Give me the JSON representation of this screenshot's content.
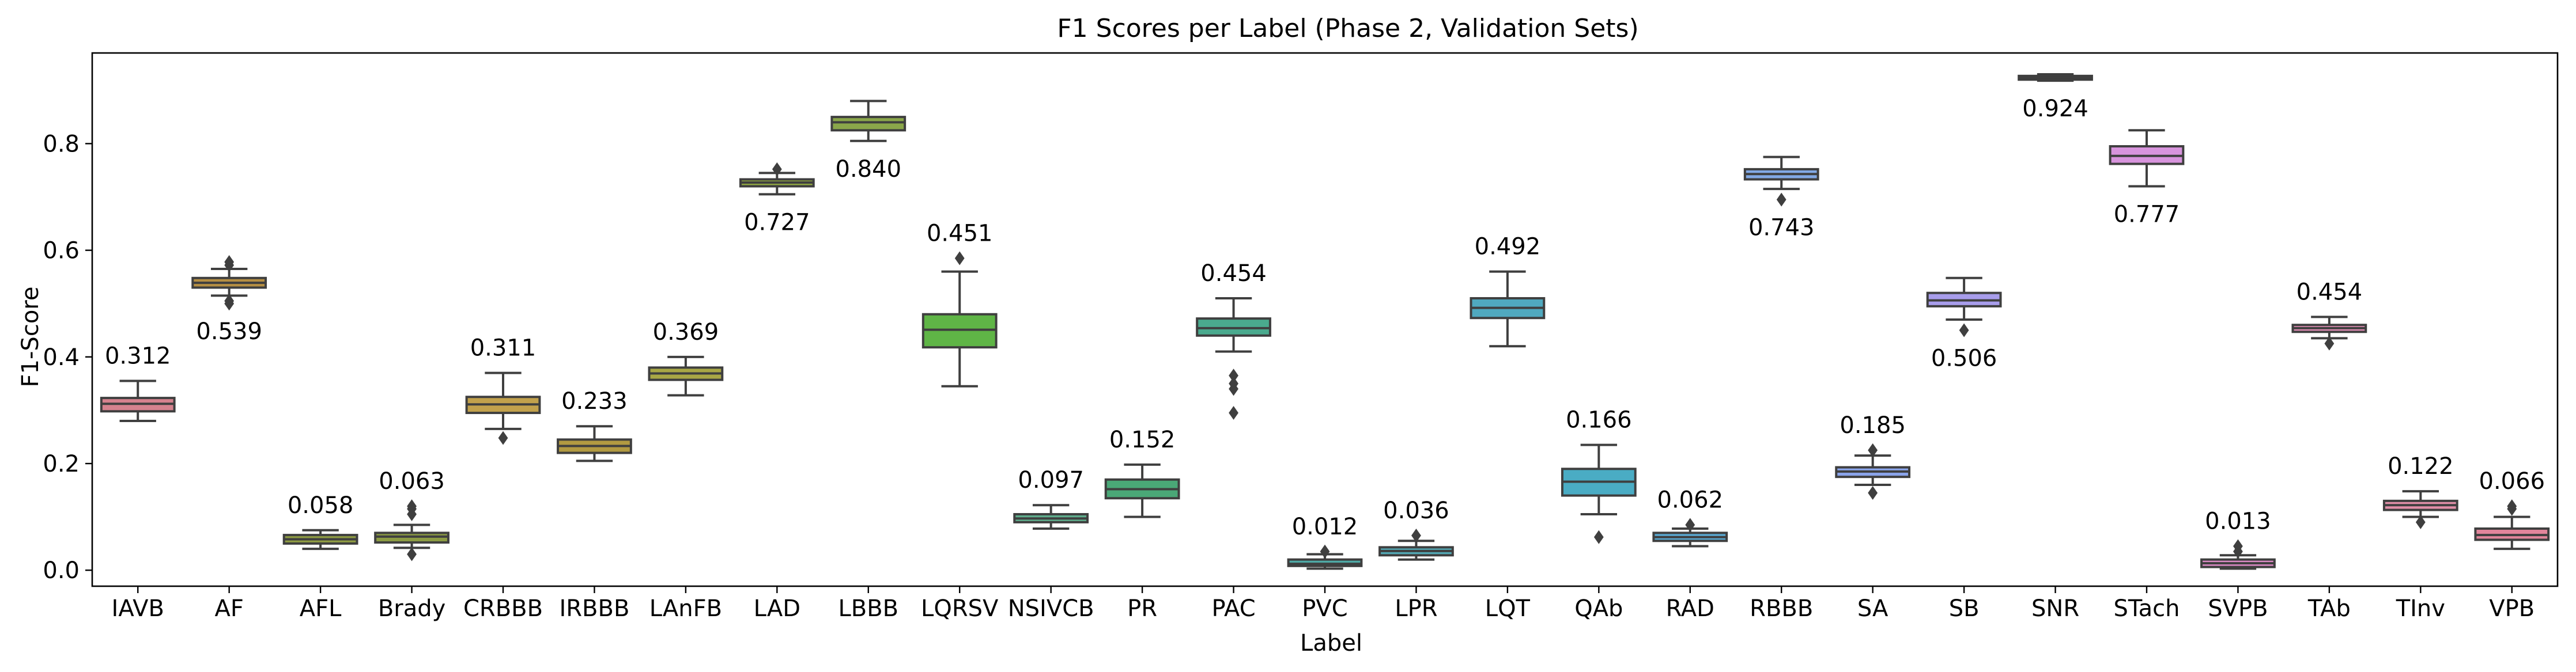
{
  "chart_data": {
    "type": "box",
    "title": "F1 Scores per Label (Phase 2, Validation Sets)",
    "xlabel": "Label",
    "ylabel": "F1-Score",
    "ylim": [
      -0.03,
      0.97
    ],
    "yticks": [
      0.0,
      0.2,
      0.4,
      0.6,
      0.8
    ],
    "ytick_labels": [
      "0.0",
      "0.2",
      "0.4",
      "0.6",
      "0.8"
    ],
    "grid": false,
    "categories": [
      "IAVB",
      "AF",
      "AFL",
      "Brady",
      "CRBBB",
      "IRBBB",
      "LAnFB",
      "LAD",
      "LBBB",
      "LQRSV",
      "NSIVCB",
      "PR",
      "PAC",
      "PVC",
      "LPR",
      "LQT",
      "QAb",
      "RAD",
      "RBBB",
      "SA",
      "SB",
      "SNR",
      "STach",
      "SVPB",
      "TAb",
      "TInv",
      "VPB"
    ],
    "colors": [
      "#d5828e",
      "#b68f43",
      "#8e9b43",
      "#8c9b43",
      "#c2a14c",
      "#b29a41",
      "#a9a745",
      "#8da441",
      "#8aa64a",
      "#5fb546",
      "#5fad8c",
      "#4aa877",
      "#4aaa8e",
      "#4fa9a5",
      "#53a8b4",
      "#50a9bf",
      "#4aacc4",
      "#5aaad4",
      "#82a9e5",
      "#8aa4ea",
      "#a89deb",
      "#b196e8",
      "#d894dd",
      "#dd8bc6",
      "#e48fb8",
      "#e28fa9",
      "#e2859b"
    ],
    "boxes": [
      {
        "label": "IAVB",
        "whislo": 0.28,
        "q1": 0.298,
        "median": 0.312,
        "q3": 0.323,
        "whishi": 0.355,
        "fliers": [],
        "annotation": "0.312",
        "annot_pos": "above"
      },
      {
        "label": "AF",
        "whislo": 0.515,
        "q1": 0.53,
        "median": 0.539,
        "q3": 0.548,
        "whishi": 0.565,
        "fliers": [
          0.5,
          0.505,
          0.572,
          0.578
        ],
        "annotation": "0.539",
        "annot_pos": "below"
      },
      {
        "label": "AFL",
        "whislo": 0.04,
        "q1": 0.05,
        "median": 0.058,
        "q3": 0.066,
        "whishi": 0.075,
        "fliers": [],
        "annotation": "0.058",
        "annot_pos": "above"
      },
      {
        "label": "Brady",
        "whislo": 0.042,
        "q1": 0.052,
        "median": 0.063,
        "q3": 0.07,
        "whishi": 0.085,
        "fliers": [
          0.03,
          0.105,
          0.115,
          0.12
        ],
        "annotation": "0.063",
        "annot_pos": "above"
      },
      {
        "label": "CRBBB",
        "whislo": 0.265,
        "q1": 0.295,
        "median": 0.311,
        "q3": 0.325,
        "whishi": 0.37,
        "fliers": [
          0.248
        ],
        "annotation": "0.311",
        "annot_pos": "above"
      },
      {
        "label": "IRBBB",
        "whislo": 0.205,
        "q1": 0.22,
        "median": 0.233,
        "q3": 0.245,
        "whishi": 0.27,
        "fliers": [],
        "annotation": "0.233",
        "annot_pos": "above"
      },
      {
        "label": "LAnFB",
        "whislo": 0.328,
        "q1": 0.357,
        "median": 0.369,
        "q3": 0.38,
        "whishi": 0.4,
        "fliers": [],
        "annotation": "0.369",
        "annot_pos": "above"
      },
      {
        "label": "LAD",
        "whislo": 0.705,
        "q1": 0.72,
        "median": 0.727,
        "q3": 0.733,
        "whishi": 0.745,
        "fliers": [
          0.752
        ],
        "annotation": "0.727",
        "annot_pos": "below"
      },
      {
        "label": "LBBB",
        "whislo": 0.805,
        "q1": 0.825,
        "median": 0.84,
        "q3": 0.85,
        "whishi": 0.88,
        "fliers": [],
        "annotation": "0.840",
        "annot_pos": "below"
      },
      {
        "label": "LQRSV",
        "whislo": 0.345,
        "q1": 0.418,
        "median": 0.451,
        "q3": 0.48,
        "whishi": 0.56,
        "fliers": [
          0.585
        ],
        "annotation": "0.451",
        "annot_pos": "above"
      },
      {
        "label": "NSIVCB",
        "whislo": 0.078,
        "q1": 0.09,
        "median": 0.097,
        "q3": 0.105,
        "whishi": 0.122,
        "fliers": [],
        "annotation": "0.097",
        "annot_pos": "above"
      },
      {
        "label": "PR",
        "whislo": 0.1,
        "q1": 0.135,
        "median": 0.152,
        "q3": 0.17,
        "whishi": 0.198,
        "fliers": [],
        "annotation": "0.152",
        "annot_pos": "above"
      },
      {
        "label": "PAC",
        "whislo": 0.41,
        "q1": 0.44,
        "median": 0.454,
        "q3": 0.472,
        "whishi": 0.51,
        "fliers": [
          0.365,
          0.35,
          0.34,
          0.295
        ],
        "annotation": "0.454",
        "annot_pos": "above"
      },
      {
        "label": "PVC",
        "whislo": 0.003,
        "q1": 0.008,
        "median": 0.012,
        "q3": 0.02,
        "whishi": 0.03,
        "fliers": [
          0.035
        ],
        "annotation": "0.012",
        "annot_pos": "above"
      },
      {
        "label": "LPR",
        "whislo": 0.02,
        "q1": 0.028,
        "median": 0.036,
        "q3": 0.043,
        "whishi": 0.055,
        "fliers": [
          0.065
        ],
        "annotation": "0.036",
        "annot_pos": "above"
      },
      {
        "label": "LQT",
        "whislo": 0.42,
        "q1": 0.473,
        "median": 0.492,
        "q3": 0.51,
        "whishi": 0.56,
        "fliers": [],
        "annotation": "0.492",
        "annot_pos": "above"
      },
      {
        "label": "QAb",
        "whislo": 0.105,
        "q1": 0.14,
        "median": 0.166,
        "q3": 0.19,
        "whishi": 0.235,
        "fliers": [
          0.062
        ],
        "annotation": "0.166",
        "annot_pos": "above"
      },
      {
        "label": "RAD",
        "whislo": 0.045,
        "q1": 0.055,
        "median": 0.062,
        "q3": 0.07,
        "whishi": 0.078,
        "fliers": [
          0.085
        ],
        "annotation": "0.062",
        "annot_pos": "above"
      },
      {
        "label": "RBBB",
        "whislo": 0.715,
        "q1": 0.733,
        "median": 0.743,
        "q3": 0.752,
        "whishi": 0.775,
        "fliers": [
          0.695
        ],
        "annotation": "0.743",
        "annot_pos": "below"
      },
      {
        "label": "SA",
        "whislo": 0.16,
        "q1": 0.175,
        "median": 0.185,
        "q3": 0.193,
        "whishi": 0.215,
        "fliers": [
          0.145,
          0.225
        ],
        "annotation": "0.185",
        "annot_pos": "above"
      },
      {
        "label": "SB",
        "whislo": 0.47,
        "q1": 0.495,
        "median": 0.506,
        "q3": 0.52,
        "whishi": 0.548,
        "fliers": [
          0.45
        ],
        "annotation": "0.506",
        "annot_pos": "below"
      },
      {
        "label": "SNR",
        "whislo": 0.918,
        "q1": 0.92,
        "median": 0.924,
        "q3": 0.927,
        "whishi": 0.93,
        "fliers": [],
        "annotation": "0.924",
        "annot_pos": "below"
      },
      {
        "label": "STach",
        "whislo": 0.72,
        "q1": 0.762,
        "median": 0.777,
        "q3": 0.795,
        "whishi": 0.825,
        "fliers": [],
        "annotation": "0.777",
        "annot_pos": "below"
      },
      {
        "label": "SVPB",
        "whislo": 0.003,
        "q1": 0.006,
        "median": 0.013,
        "q3": 0.02,
        "whishi": 0.028,
        "fliers": [
          0.035,
          0.045
        ],
        "annotation": "0.013",
        "annot_pos": "above"
      },
      {
        "label": "TAb",
        "whislo": 0.435,
        "q1": 0.447,
        "median": 0.454,
        "q3": 0.46,
        "whishi": 0.475,
        "fliers": [
          0.425
        ],
        "annotation": "0.454",
        "annot_pos": "above"
      },
      {
        "label": "TInv",
        "whislo": 0.1,
        "q1": 0.113,
        "median": 0.122,
        "q3": 0.13,
        "whishi": 0.148,
        "fliers": [
          0.09
        ],
        "annotation": "0.122",
        "annot_pos": "above"
      },
      {
        "label": "VPB",
        "whislo": 0.04,
        "q1": 0.057,
        "median": 0.066,
        "q3": 0.078,
        "whishi": 0.1,
        "fliers": [
          0.115,
          0.12
        ],
        "annotation": "0.066",
        "annot_pos": "above"
      }
    ]
  }
}
